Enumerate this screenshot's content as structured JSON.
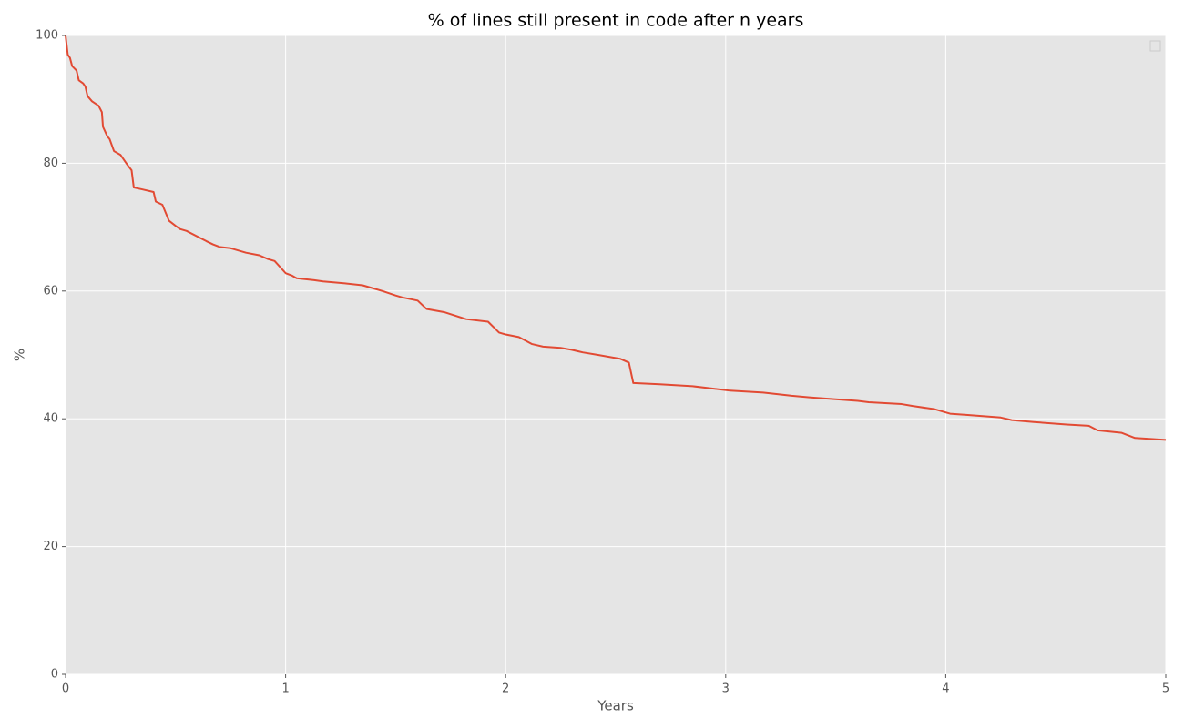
{
  "chart_data": {
    "type": "line",
    "title": "% of lines still present in code after n years",
    "x_label": "Years",
    "y_label": "%",
    "x": [
      0,
      0.01,
      0.02,
      0.03,
      0.05,
      0.06,
      0.08,
      0.09,
      0.1,
      0.12,
      0.15,
      0.165,
      0.17,
      0.19,
      0.2,
      0.22,
      0.25,
      0.28,
      0.3,
      0.31,
      0.35,
      0.4,
      0.41,
      0.44,
      0.47,
      0.5,
      0.52,
      0.55,
      0.64,
      0.67,
      0.7,
      0.75,
      0.82,
      0.88,
      0.92,
      0.95,
      1.0,
      1.03,
      1.05,
      1.13,
      1.17,
      1.27,
      1.35,
      1.4,
      1.44,
      1.5,
      1.53,
      1.6,
      1.64,
      1.72,
      1.82,
      1.92,
      1.97,
      2.0,
      2.06,
      2.12,
      2.17,
      2.25,
      2.3,
      2.35,
      2.42,
      2.52,
      2.56,
      2.58,
      2.7,
      2.85,
      2.95,
      3.02,
      3.17,
      3.3,
      3.4,
      3.6,
      3.65,
      3.8,
      3.85,
      3.95,
      4.0,
      4.02,
      4.1,
      4.25,
      4.3,
      4.4,
      4.55,
      4.65,
      4.69,
      4.8,
      4.86,
      4.95,
      5.0
    ],
    "series": [
      {
        "color": "#e24a33",
        "values": [
          100,
          97,
          96.5,
          95.2,
          94.5,
          93,
          92.5,
          92,
          90.5,
          89.7,
          89,
          88,
          85.7,
          84.2,
          83.8,
          81.9,
          81.3,
          79.8,
          78.9,
          76.2,
          75.9,
          75.5,
          74,
          73.5,
          71,
          70.2,
          69.7,
          69.4,
          67.8,
          67.3,
          66.9,
          66.7,
          66,
          65.6,
          65,
          64.7,
          62.8,
          62.4,
          62,
          61.7,
          61.5,
          61.2,
          60.9,
          60.4,
          60,
          59.3,
          59,
          58.5,
          57.2,
          56.7,
          55.6,
          55.2,
          53.5,
          53.2,
          52.8,
          51.7,
          51.3,
          51.1,
          50.8,
          50.4,
          50,
          49.4,
          48.8,
          45.6,
          45.4,
          45.1,
          44.7,
          44.4,
          44.1,
          43.6,
          43.3,
          42.8,
          42.6,
          42.3,
          42,
          41.5,
          41,
          40.8,
          40.6,
          40.2,
          39.8,
          39.5,
          39.1,
          38.9,
          38.2,
          37.8,
          37,
          36.8,
          36.7
        ]
      }
    ],
    "xlim": [
      0,
      5
    ],
    "xticks": [
      0,
      1,
      2,
      3,
      4,
      5
    ],
    "ylim": [
      0,
      100
    ],
    "yticks": [
      0,
      20,
      40,
      60,
      80,
      100
    ],
    "grid": true
  }
}
